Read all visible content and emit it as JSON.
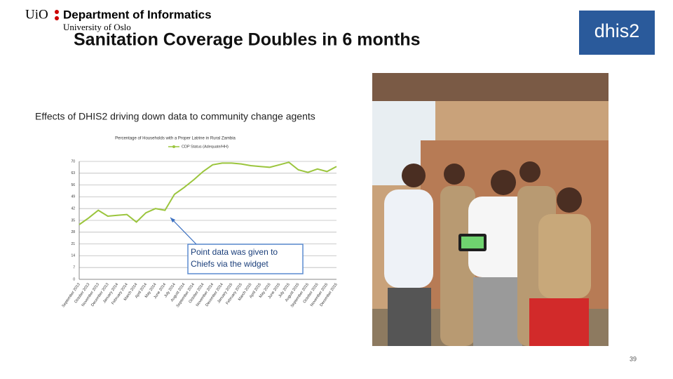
{
  "header": {
    "logo_short": "UiO",
    "department": "Department of Informatics",
    "university": "University of Oslo",
    "title": "Sanitation Coverage Doubles in 6 months",
    "brand": "dhis2"
  },
  "caption": "Effects of DHIS2 driving down data to community change agents",
  "slide_number": "39",
  "chart_data": {
    "type": "line",
    "title": "Percentage of Households with a Proper Latrine in Rural Zambia",
    "categories": [
      "September 2013",
      "October 2013",
      "November 2013",
      "December 2013",
      "January 2014",
      "February 2014",
      "March 2014",
      "April 2014",
      "May 2014",
      "June 2014",
      "July 2014",
      "August 2014",
      "September 2014",
      "October 2014",
      "November 2014",
      "December 2014",
      "January 2015",
      "February 2015",
      "March 2015",
      "April 2015",
      "May 2015",
      "June 2015",
      "July 2015",
      "August 2015",
      "September 2015",
      "October 2015",
      "November 2015",
      "December 2015"
    ],
    "series": [
      {
        "name": "CDP Status (Adequate/HH)",
        "color": "#9bc53d",
        "values": [
          32.5,
          36.5,
          41,
          37.5,
          38,
          38.5,
          34,
          39.5,
          42,
          41,
          50.5,
          54.5,
          59,
          64,
          68,
          69,
          69,
          68.5,
          67.5,
          67,
          66.5,
          68,
          69.5,
          65,
          63.5,
          65.5,
          64,
          67
        ]
      }
    ],
    "ylim": [
      0,
      70
    ],
    "yticks": [
      0,
      7,
      14,
      21,
      28,
      35,
      42,
      49,
      56,
      63,
      70
    ],
    "grid": true,
    "annotation": "Point data was given to Chiefs via the widget"
  }
}
